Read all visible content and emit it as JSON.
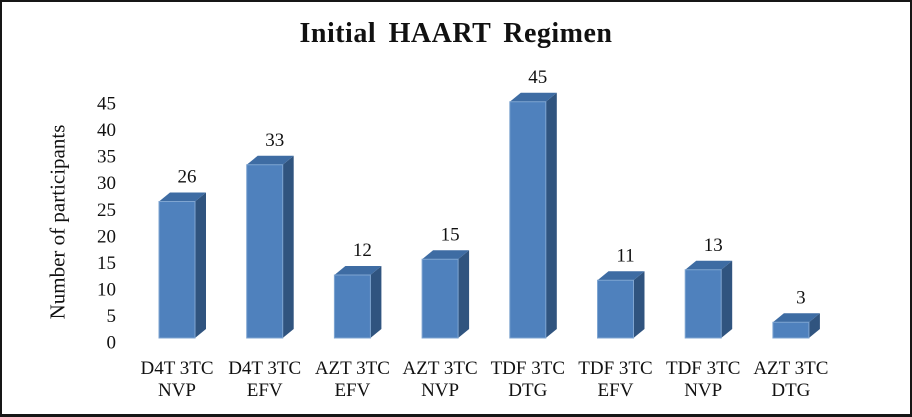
{
  "frame": {
    "background": "#ffffff",
    "border_color": "#161616"
  },
  "chart_data": {
    "type": "bar",
    "style": "3d-column",
    "title": "Initial HAART Regimen",
    "xlabel": "",
    "ylabel": "Number of participants",
    "categories": [
      [
        "D4T 3TC",
        "NVP"
      ],
      [
        "D4T 3TC",
        "EFV"
      ],
      [
        "AZT 3TC",
        "EFV"
      ],
      [
        "AZT 3TC",
        "NVP"
      ],
      [
        "TDF 3TC",
        "DTG"
      ],
      [
        "TDF 3TC",
        "EFV"
      ],
      [
        "TDF 3TC",
        "NVP"
      ],
      [
        "AZT 3TC",
        "DTG"
      ]
    ],
    "values": [
      26,
      33,
      12,
      15,
      45,
      11,
      13,
      3
    ],
    "show_data_labels": true,
    "yticks": [
      0,
      5,
      10,
      15,
      20,
      25,
      30,
      35,
      40,
      45
    ],
    "ylim": [
      0,
      45
    ],
    "grid": false,
    "legend": null,
    "colors": {
      "bar_front": "#4F81BD",
      "bar_top": "#3E6CA3",
      "bar_side": "#30547F",
      "bar_edge": "#7FA5D1",
      "text": "#111111"
    }
  }
}
